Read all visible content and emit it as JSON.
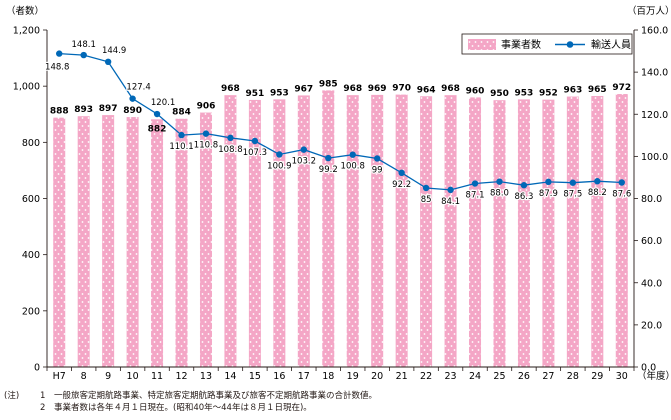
{
  "chart_data": {
    "type": "bar",
    "categories": [
      "H7",
      "8",
      "9",
      "10",
      "11",
      "12",
      "13",
      "14",
      "15",
      "16",
      "17",
      "18",
      "19",
      "20",
      "21",
      "22",
      "23",
      "24",
      "25",
      "26",
      "27",
      "28",
      "29",
      "30"
    ],
    "x_unit_label": "（年度）",
    "y_left": {
      "unit_label": "（者数）",
      "range": [
        0,
        1200
      ],
      "ticks": [
        "0",
        "200",
        "400",
        "600",
        "800",
        "1,000",
        "1,200"
      ]
    },
    "y_right": {
      "unit_label": "（百万人）",
      "range": [
        0,
        160
      ],
      "ticks": [
        "0.0",
        "20.0",
        "40.0",
        "60.0",
        "80.0",
        "100.0",
        "120.0",
        "140.0",
        "160.0"
      ]
    },
    "grid": false,
    "legend_position": "top-right",
    "series": [
      {
        "name": "事業者数",
        "type": "bar",
        "axis": "left",
        "color": "#f4a6c6",
        "values": [
          888,
          893,
          897,
          890,
          882,
          884,
          906,
          968,
          951,
          953,
          967,
          985,
          968,
          969,
          970,
          964,
          968,
          960,
          950,
          953,
          952,
          963,
          965,
          972
        ],
        "labels": [
          "888",
          "893",
          "897",
          "890",
          "882",
          "884",
          "906",
          "968",
          "951",
          "953",
          "967",
          "985",
          "968",
          "969",
          "970",
          "964",
          "968",
          "960",
          "950",
          "953",
          "952",
          "963",
          "965",
          "972"
        ]
      },
      {
        "name": "輸送人員",
        "type": "line",
        "axis": "right",
        "color": "#0068b7",
        "values": [
          148.8,
          148.1,
          144.9,
          127.4,
          120.1,
          110.1,
          110.8,
          108.8,
          107.3,
          100.9,
          103.2,
          99.2,
          100.8,
          99,
          92.2,
          85,
          84.1,
          87.1,
          88.0,
          86.3,
          87.9,
          87.5,
          88.2,
          87.6
        ],
        "labels": [
          "148.8",
          "148.1",
          "144.9",
          "127.4",
          "120.1",
          "110.1",
          "110.8",
          "108.8",
          "107.3",
          "100.9",
          "103.2",
          "99.2",
          "100.8",
          "99",
          "92.2",
          "85",
          "84.1",
          "87.1",
          "88.0",
          "86.3",
          "87.9",
          "87.5",
          "88.2",
          "87.6"
        ]
      }
    ]
  },
  "notes": [
    {
      "prefix": "(注)",
      "num": "1",
      "text": "一般旅客定期航路事業、特定旅客定期航路事業及び旅客不定期航路事業の合計数値。"
    },
    {
      "prefix": "",
      "num": "2",
      "text": "事業者数は各年４月１日現在。(昭和40年～44年は８月１日現在)。"
    }
  ]
}
